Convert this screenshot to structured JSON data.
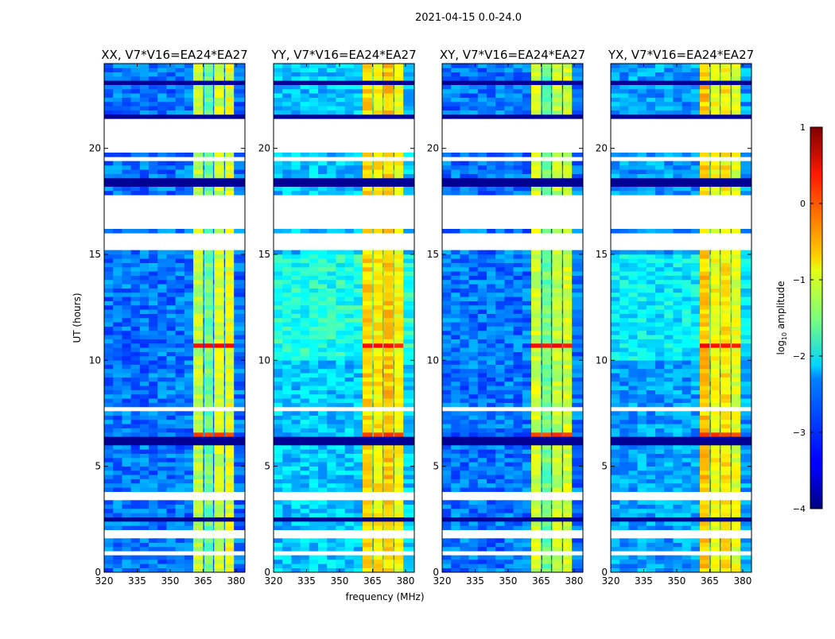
{
  "chart_data": {
    "type": "heatmap",
    "suptitle": "2021-04-15 0.0-24.0",
    "xlabel": "frequency (MHz)",
    "ylabel": "UT (hours)",
    "xlim": [
      320,
      384
    ],
    "ylim": [
      0,
      24
    ],
    "xticks": [
      "320",
      "335",
      "350",
      "365",
      "380"
    ],
    "xtick_values": [
      320,
      335,
      350,
      365,
      380
    ],
    "yticks": [
      "0",
      "5",
      "10",
      "15",
      "20"
    ],
    "ytick_values": [
      0,
      5,
      10,
      15,
      20
    ],
    "panels": [
      {
        "title": "XX, V7*V16=EA24*EA27",
        "base_level": -2.8,
        "band_level": -1.3,
        "band_levels": [
          -1.2,
          -1.6,
          -1.1,
          -1.0
        ]
      },
      {
        "title": "YY, V7*V16=EA24*EA27",
        "base_level": -2.4,
        "band_level": -0.8,
        "band_levels": [
          -0.7,
          -0.8,
          -0.6,
          -0.9
        ]
      },
      {
        "title": "XY, V7*V16=EA24*EA27",
        "base_level": -2.8,
        "band_level": -1.3,
        "band_levels": [
          -1.1,
          -1.6,
          -1.2,
          -1.1
        ]
      },
      {
        "title": "YX, V7*V16=EA24*EA27",
        "base_level": -2.6,
        "band_level": -0.9,
        "band_levels": [
          -0.6,
          -0.9,
          -0.8,
          -1.0
        ]
      }
    ],
    "frequency_bands_MHz": [
      [
        360.5,
        365.0
      ],
      [
        365.5,
        369.5
      ],
      [
        370.0,
        374.5
      ],
      [
        375.0,
        379.0
      ]
    ],
    "flagged_hours": [
      [
        19.85,
        21.45
      ],
      [
        19.35,
        19.6
      ],
      [
        16.1,
        17.7
      ],
      [
        15.2,
        15.9
      ],
      [
        3.45,
        3.75
      ],
      [
        1.7,
        1.95
      ],
      [
        0.9,
        1.0
      ],
      [
        22.7,
        22.8
      ],
      [
        7.7,
        7.8
      ]
    ],
    "low_hours": [
      [
        23.0,
        23.1
      ],
      [
        21.45,
        21.5
      ],
      [
        18.2,
        18.6
      ],
      [
        11.9,
        12.0
      ],
      [
        9.3,
        9.4
      ],
      [
        6.1,
        6.35
      ],
      [
        2.45,
        2.55
      ]
    ],
    "rfi_hours": [
      {
        "hours": [
          10.5,
          10.75
        ],
        "level": 0.3
      },
      {
        "hours": [
          6.35,
          6.55
        ],
        "level": 0.1
      }
    ],
    "colorbar": {
      "label": "log10 amplitude",
      "label_main": "log",
      "label_sub": "10",
      "label_rest": " amplitude",
      "range": [
        -4,
        1
      ],
      "ticks": [
        "−4",
        "−3",
        "−2",
        "−1",
        "0",
        "1"
      ],
      "tick_values": [
        -4,
        -3,
        -2,
        -1,
        0,
        1
      ],
      "colormap": "jet"
    }
  }
}
